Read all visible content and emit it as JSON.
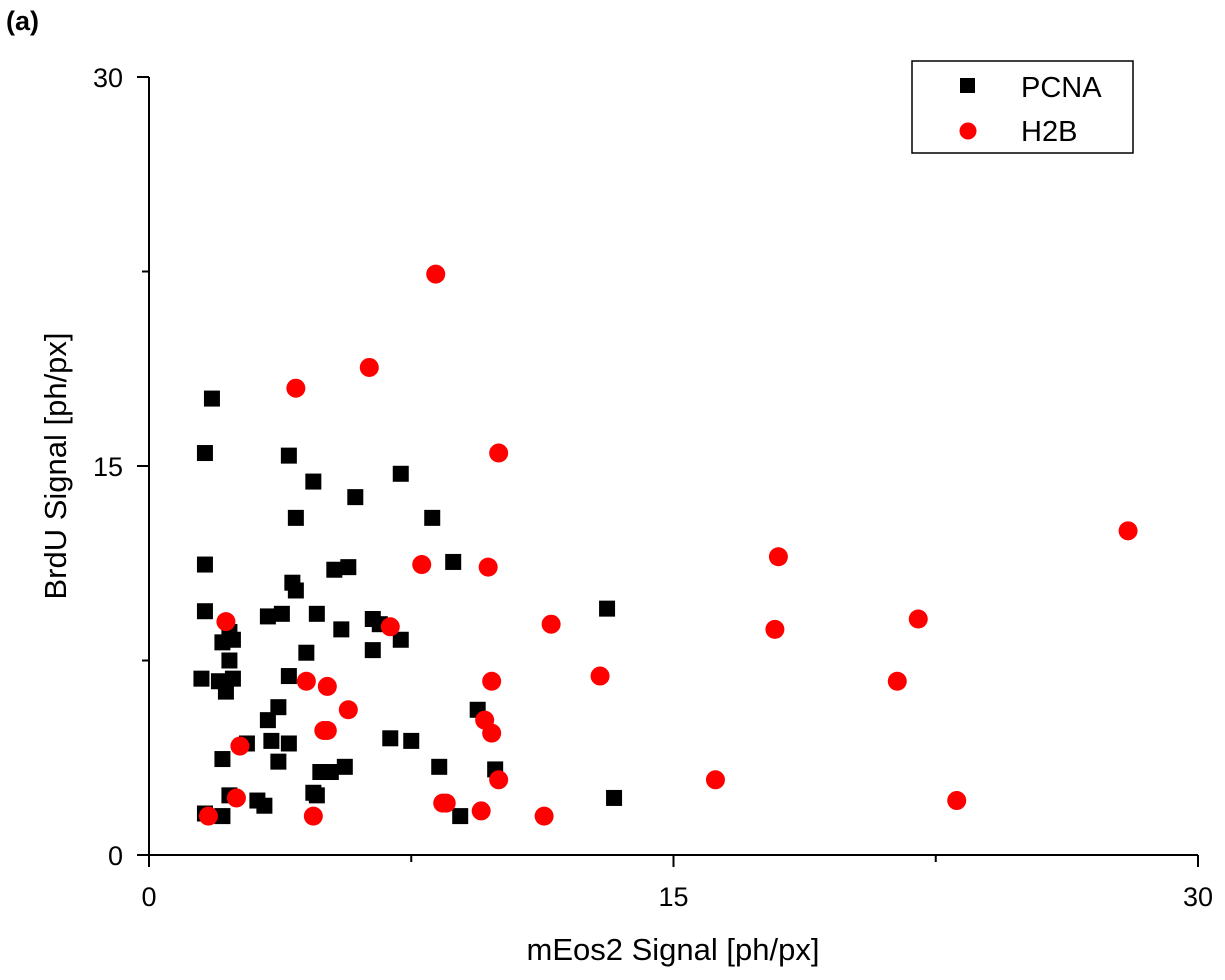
{
  "panel_label": "(a)",
  "chart_data": {
    "type": "scatter",
    "title": "",
    "xlabel": "mEos2 Signal [ph/px]",
    "ylabel": "BrdU Signal [ph/px]",
    "xlim": [
      0,
      30
    ],
    "ylim": [
      0,
      30
    ],
    "xticks": [
      0,
      15,
      30
    ],
    "yticks": [
      0,
      15,
      30
    ],
    "grid": false,
    "legend_position": "top-right",
    "series": [
      {
        "name": "PCNA",
        "marker": "square",
        "color": "#000000",
        "points": [
          [
            1.8,
            17.6
          ],
          [
            1.6,
            15.5
          ],
          [
            4.0,
            15.4
          ],
          [
            4.7,
            14.4
          ],
          [
            7.2,
            14.7
          ],
          [
            5.9,
            13.8
          ],
          [
            4.2,
            13.0
          ],
          [
            8.1,
            13.0
          ],
          [
            1.6,
            11.2
          ],
          [
            5.3,
            11.0
          ],
          [
            5.7,
            11.1
          ],
          [
            8.7,
            11.3
          ],
          [
            4.1,
            10.5
          ],
          [
            4.2,
            10.2
          ],
          [
            1.6,
            9.4
          ],
          [
            3.4,
            9.2
          ],
          [
            3.8,
            9.3
          ],
          [
            4.8,
            9.3
          ],
          [
            6.4,
            9.1
          ],
          [
            6.6,
            8.9
          ],
          [
            5.5,
            8.7
          ],
          [
            13.1,
            9.5
          ],
          [
            2.3,
            8.6
          ],
          [
            2.4,
            8.3
          ],
          [
            2.1,
            8.2
          ],
          [
            7.2,
            8.3
          ],
          [
            4.5,
            7.8
          ],
          [
            6.4,
            7.9
          ],
          [
            2.3,
            7.5
          ],
          [
            1.5,
            6.8
          ],
          [
            2.0,
            6.7
          ],
          [
            2.4,
            6.8
          ],
          [
            4.0,
            6.9
          ],
          [
            2.2,
            6.3
          ],
          [
            3.7,
            5.7
          ],
          [
            3.4,
            5.2
          ],
          [
            9.4,
            5.6
          ],
          [
            2.8,
            4.3
          ],
          [
            3.5,
            4.4
          ],
          [
            4.0,
            4.3
          ],
          [
            6.9,
            4.5
          ],
          [
            7.5,
            4.4
          ],
          [
            2.1,
            3.7
          ],
          [
            3.7,
            3.6
          ],
          [
            4.9,
            3.2
          ],
          [
            5.2,
            3.2
          ],
          [
            5.6,
            3.4
          ],
          [
            8.3,
            3.4
          ],
          [
            9.9,
            3.3
          ],
          [
            4.7,
            2.4
          ],
          [
            4.8,
            2.3
          ],
          [
            2.3,
            2.3
          ],
          [
            3.1,
            2.1
          ],
          [
            3.3,
            1.9
          ],
          [
            1.6,
            1.6
          ],
          [
            2.1,
            1.5
          ],
          [
            8.9,
            1.5
          ],
          [
            13.3,
            2.2
          ]
        ]
      },
      {
        "name": "H2B",
        "marker": "circle",
        "color": "#ff0000",
        "points": [
          [
            8.2,
            22.4
          ],
          [
            4.2,
            18.0
          ],
          [
            6.3,
            18.8
          ],
          [
            10.0,
            15.5
          ],
          [
            7.8,
            11.2
          ],
          [
            9.7,
            11.1
          ],
          [
            18.0,
            11.5
          ],
          [
            28.0,
            12.5
          ],
          [
            2.2,
            9.0
          ],
          [
            6.9,
            8.8
          ],
          [
            11.5,
            8.9
          ],
          [
            17.9,
            8.7
          ],
          [
            22.0,
            9.1
          ],
          [
            4.5,
            6.7
          ],
          [
            5.1,
            6.5
          ],
          [
            9.8,
            6.7
          ],
          [
            12.9,
            6.9
          ],
          [
            21.4,
            6.7
          ],
          [
            5.7,
            5.6
          ],
          [
            9.6,
            5.2
          ],
          [
            5.0,
            4.8
          ],
          [
            5.1,
            4.8
          ],
          [
            9.8,
            4.7
          ],
          [
            2.6,
            4.2
          ],
          [
            2.5,
            2.2
          ],
          [
            8.4,
            2.0
          ],
          [
            8.5,
            2.0
          ],
          [
            10.0,
            2.9
          ],
          [
            16.2,
            2.9
          ],
          [
            23.1,
            2.1
          ],
          [
            1.7,
            1.5
          ],
          [
            4.7,
            1.5
          ],
          [
            9.5,
            1.7
          ],
          [
            11.3,
            1.5
          ]
        ]
      }
    ]
  }
}
